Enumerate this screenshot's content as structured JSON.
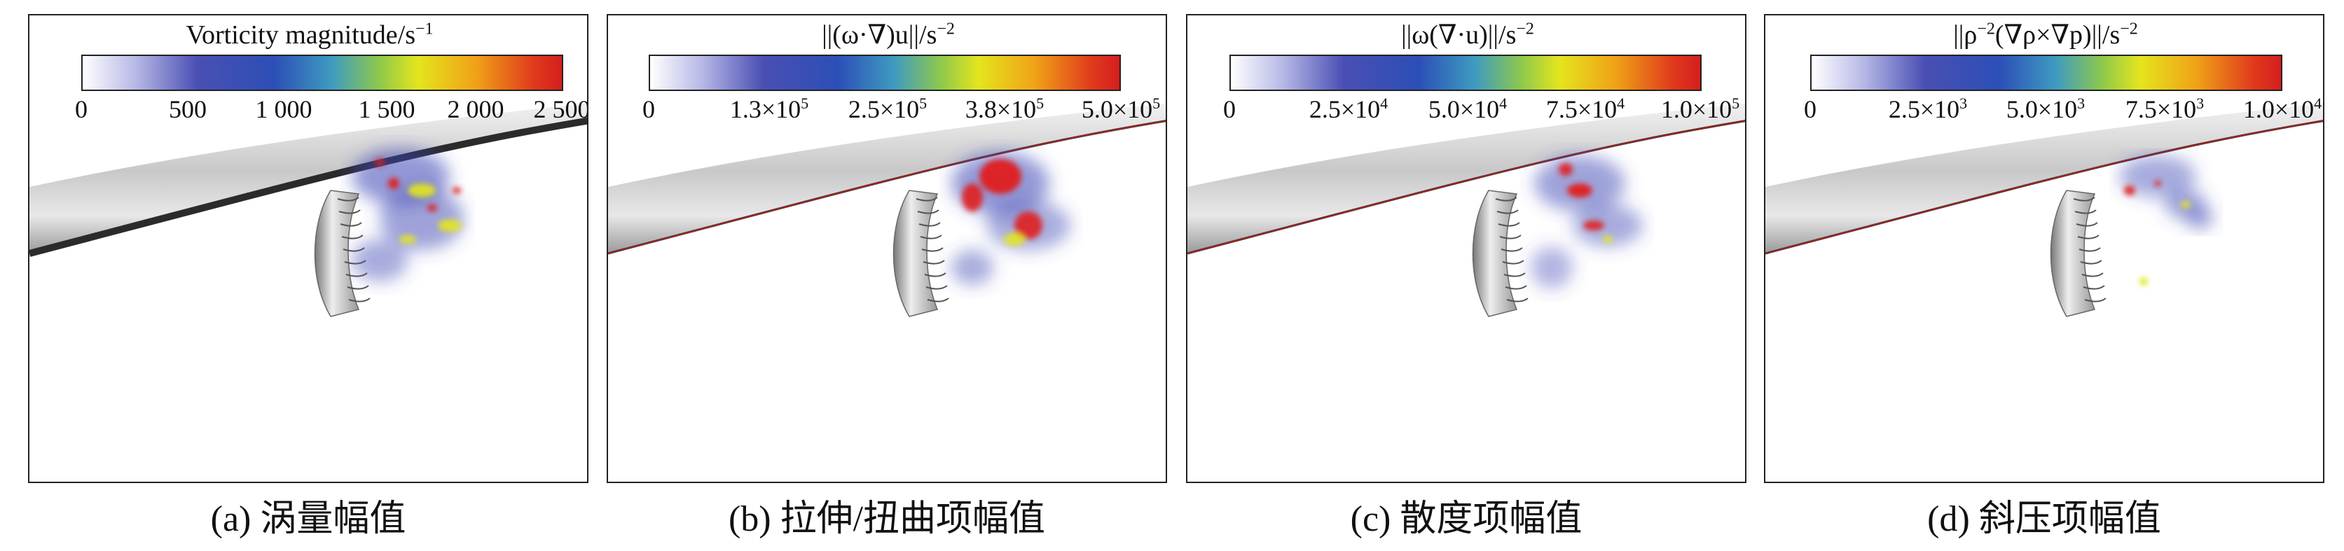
{
  "panels": [
    {
      "colorbar_title": "Vorticity magnitude/s",
      "colorbar_title_sup": "−1",
      "ticks": [
        "0",
        "500",
        "1 000",
        "1 500",
        "2 000",
        "2 500"
      ],
      "caption": "(a) 涡量幅值"
    },
    {
      "colorbar_title": "||(ω·∇)u||/s",
      "colorbar_title_sup": "−2",
      "ticks": [
        "0",
        "1.3×10",
        "2.5×10",
        "3.8×10",
        "5.0×10"
      ],
      "tick_sups": [
        "",
        "5",
        "5",
        "5",
        "5"
      ],
      "caption": "(b) 拉伸/扭曲项幅值"
    },
    {
      "colorbar_title": "||ω(∇·u)||/s",
      "colorbar_title_sup": "−2",
      "ticks": [
        "0",
        "2.5×10",
        "5.0×10",
        "7.5×10",
        "1.0×10"
      ],
      "tick_sups": [
        "",
        "4",
        "4",
        "4",
        "5"
      ],
      "caption": "(c) 散度项幅值"
    },
    {
      "colorbar_title_pre": "||ρ",
      "colorbar_title_pre_sup": "−2",
      "colorbar_title": "(∇ρ×∇p)||/s",
      "colorbar_title_sup": "−2",
      "ticks": [
        "0",
        "2.5×10",
        "5.0×10",
        "7.5×10",
        "1.0×10"
      ],
      "tick_sups": [
        "",
        "3",
        "3",
        "3",
        "4"
      ],
      "caption": "(d) 斜压项幅值"
    }
  ],
  "colors": {
    "hull_dark": "#2b2b2b",
    "hull_light": "#e8e8e8",
    "low": "#3c46b4",
    "mid": "#e4e51d",
    "high": "#e0201c"
  },
  "icons": [
    "propeller-icon",
    "hull-icon"
  ]
}
